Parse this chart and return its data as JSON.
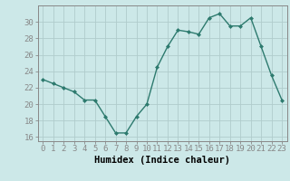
{
  "xlabel": "Humidex (Indice chaleur)",
  "ylabel": "",
  "x": [
    0,
    1,
    2,
    3,
    4,
    5,
    6,
    7,
    8,
    9,
    10,
    11,
    12,
    13,
    14,
    15,
    16,
    17,
    18,
    19,
    20,
    21,
    22,
    23
  ],
  "y": [
    23.0,
    22.5,
    22.0,
    21.5,
    20.5,
    20.5,
    18.5,
    16.5,
    16.5,
    18.5,
    20.0,
    24.5,
    27.0,
    29.0,
    28.8,
    28.5,
    30.5,
    31.0,
    29.5,
    29.5,
    30.5,
    27.0,
    23.5,
    20.5
  ],
  "line_color": "#2d7a6e",
  "marker": "D",
  "marker_size": 2.0,
  "bg_color": "#cce8e8",
  "grid_color": "#b0cccc",
  "axis_color": "#888888",
  "ylim": [
    15.5,
    32.0
  ],
  "xlim": [
    -0.5,
    23.5
  ],
  "yticks": [
    16,
    18,
    20,
    22,
    24,
    26,
    28,
    30
  ],
  "xtick_labels": [
    "0",
    "1",
    "2",
    "3",
    "4",
    "5",
    "6",
    "7",
    "8",
    "9",
    "10",
    "11",
    "12",
    "13",
    "14",
    "15",
    "16",
    "17",
    "18",
    "19",
    "20",
    "21",
    "22",
    "23"
  ],
  "label_fontsize": 7.5,
  "tick_fontsize": 6.5
}
